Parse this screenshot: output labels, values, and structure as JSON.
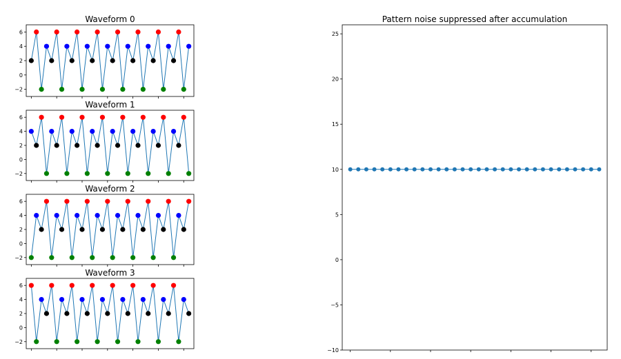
{
  "chart_data": [
    {
      "type": "line",
      "title": "Waveform 0",
      "x": [
        1,
        2,
        3,
        4,
        5,
        6,
        7,
        8,
        9,
        10,
        11,
        12,
        13,
        14,
        15,
        16,
        17,
        18,
        19,
        20,
        21,
        22,
        23,
        24,
        25,
        26,
        27,
        28,
        29,
        30,
        31,
        32
      ],
      "values": [
        2,
        6,
        -2,
        4,
        2,
        6,
        -2,
        4,
        2,
        6,
        -2,
        4,
        2,
        6,
        -2,
        4,
        2,
        6,
        -2,
        4,
        2,
        6,
        -2,
        4,
        2,
        6,
        -2,
        4,
        2,
        6,
        -2,
        4
      ],
      "yticks": [
        -2,
        0,
        2,
        4,
        6
      ],
      "ylim": [
        -3,
        7
      ]
    },
    {
      "type": "line",
      "title": "Waveform 1",
      "x": [
        1,
        2,
        3,
        4,
        5,
        6,
        7,
        8,
        9,
        10,
        11,
        12,
        13,
        14,
        15,
        16,
        17,
        18,
        19,
        20,
        21,
        22,
        23,
        24,
        25,
        26,
        27,
        28,
        29,
        30,
        31,
        32
      ],
      "values": [
        4,
        2,
        6,
        -2,
        4,
        2,
        6,
        -2,
        4,
        2,
        6,
        -2,
        4,
        2,
        6,
        -2,
        4,
        2,
        6,
        -2,
        4,
        2,
        6,
        -2,
        4,
        2,
        6,
        -2,
        4,
        2,
        6,
        -2
      ],
      "yticks": [
        -2,
        0,
        2,
        4,
        6
      ],
      "ylim": [
        -3,
        7
      ]
    },
    {
      "type": "line",
      "title": "Waveform 2",
      "x": [
        1,
        2,
        3,
        4,
        5,
        6,
        7,
        8,
        9,
        10,
        11,
        12,
        13,
        14,
        15,
        16,
        17,
        18,
        19,
        20,
        21,
        22,
        23,
        24,
        25,
        26,
        27,
        28,
        29,
        30,
        31,
        32
      ],
      "values": [
        -2,
        4,
        2,
        6,
        -2,
        4,
        2,
        6,
        -2,
        4,
        2,
        6,
        -2,
        4,
        2,
        6,
        -2,
        4,
        2,
        6,
        -2,
        4,
        2,
        6,
        -2,
        4,
        2,
        6,
        -2,
        4,
        2,
        6
      ],
      "yticks": [
        -2,
        0,
        2,
        4,
        6
      ],
      "ylim": [
        -3,
        7
      ]
    },
    {
      "type": "line",
      "title": "Waveform 3",
      "x": [
        1,
        2,
        3,
        4,
        5,
        6,
        7,
        8,
        9,
        10,
        11,
        12,
        13,
        14,
        15,
        16,
        17,
        18,
        19,
        20,
        21,
        22,
        23,
        24,
        25,
        26,
        27,
        28,
        29,
        30,
        31,
        32
      ],
      "values": [
        6,
        -2,
        4,
        2,
        6,
        -2,
        4,
        2,
        6,
        -2,
        4,
        2,
        6,
        -2,
        4,
        2,
        6,
        -2,
        4,
        2,
        6,
        -2,
        4,
        2,
        6,
        -2,
        4,
        2,
        6,
        -2,
        4,
        2
      ],
      "yticks": [
        -2,
        0,
        2,
        4,
        6
      ],
      "ylim": [
        -3,
        7
      ]
    },
    {
      "type": "line",
      "title": "Pattern noise suppressed after accumulation",
      "x": [
        1,
        2,
        3,
        4,
        5,
        6,
        7,
        8,
        9,
        10,
        11,
        12,
        13,
        14,
        15,
        16,
        17,
        18,
        19,
        20,
        21,
        22,
        23,
        24,
        25,
        26,
        27,
        28,
        29,
        30,
        31,
        32
      ],
      "values": [
        10,
        10,
        10,
        10,
        10,
        10,
        10,
        10,
        10,
        10,
        10,
        10,
        10,
        10,
        10,
        10,
        10,
        10,
        10,
        10,
        10,
        10,
        10,
        10,
        10,
        10,
        10,
        10,
        10,
        10,
        10,
        10
      ],
      "yticks": [
        -10,
        -5,
        0,
        5,
        10,
        15,
        20,
        25
      ],
      "ylim": [
        -10,
        26
      ]
    }
  ],
  "colors": {
    "line": "#1f77b4",
    "value_6": "#ff0000",
    "value_4": "#0000ff",
    "value_2": "#000000",
    "value_neg2": "#008000",
    "accum_marker": "#1f77b4"
  }
}
